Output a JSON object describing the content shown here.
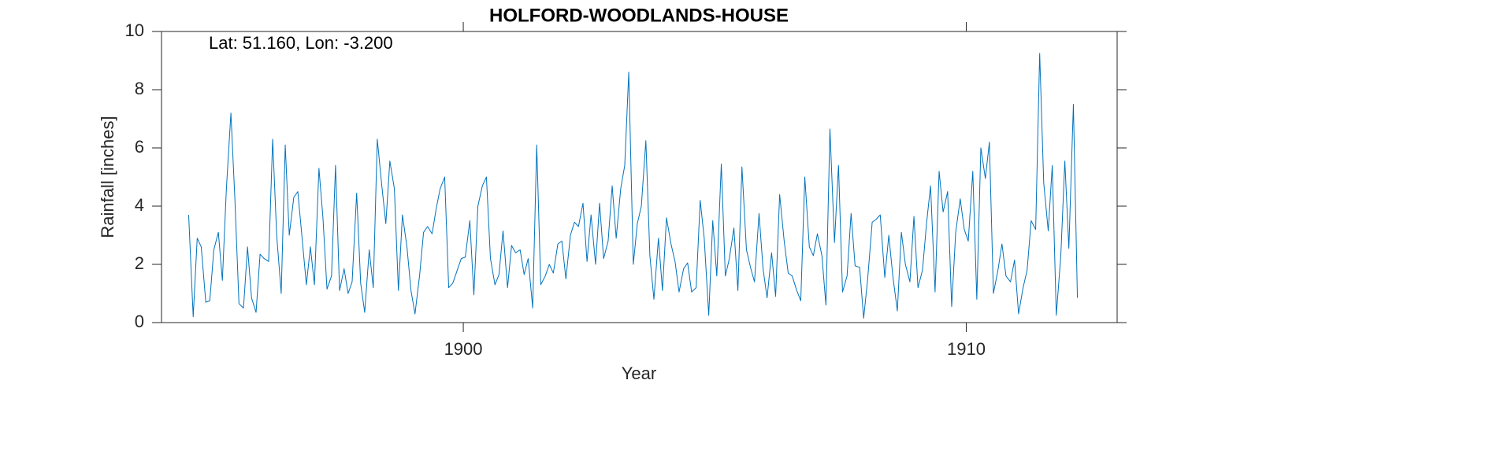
{
  "chart_data": {
    "type": "line",
    "title": "HOLFORD-WOODLANDS-HOUSE",
    "annotation": "Lat: 51.160, Lon: -3.200",
    "xlabel": "Year",
    "ylabel": "Rainfall [inches]",
    "color": "#0072BD",
    "xlim": [
      1894,
      1913
    ],
    "ylim": [
      0,
      10
    ],
    "xticks": [
      1900,
      1910
    ],
    "yticks": [
      0,
      2,
      4,
      6,
      8,
      10
    ],
    "x": [
      1894.54,
      1894.63,
      1894.71,
      1894.79,
      1894.88,
      1894.96,
      1895.04,
      1895.13,
      1895.21,
      1895.29,
      1895.38,
      1895.46,
      1895.54,
      1895.63,
      1895.71,
      1895.79,
      1895.88,
      1895.96,
      1896.04,
      1896.13,
      1896.21,
      1896.29,
      1896.38,
      1896.46,
      1896.54,
      1896.63,
      1896.71,
      1896.79,
      1896.88,
      1896.96,
      1897.04,
      1897.13,
      1897.21,
      1897.29,
      1897.38,
      1897.46,
      1897.54,
      1897.63,
      1897.71,
      1897.79,
      1897.88,
      1897.96,
      1898.04,
      1898.13,
      1898.21,
      1898.29,
      1898.38,
      1898.46,
      1898.54,
      1898.63,
      1898.71,
      1898.79,
      1898.88,
      1898.96,
      1899.04,
      1899.13,
      1899.21,
      1899.29,
      1899.38,
      1899.46,
      1899.54,
      1899.63,
      1899.71,
      1899.79,
      1899.88,
      1899.96,
      1900.04,
      1900.13,
      1900.21,
      1900.29,
      1900.38,
      1900.46,
      1900.54,
      1900.63,
      1900.71,
      1900.79,
      1900.88,
      1900.96,
      1901.04,
      1901.13,
      1901.21,
      1901.29,
      1901.38,
      1901.46,
      1901.54,
      1901.63,
      1901.71,
      1901.79,
      1901.88,
      1901.96,
      1902.04,
      1902.13,
      1902.21,
      1902.29,
      1902.38,
      1902.46,
      1902.54,
      1902.63,
      1902.71,
      1902.79,
      1902.88,
      1902.96,
      1903.04,
      1903.13,
      1903.21,
      1903.29,
      1903.38,
      1903.46,
      1903.54,
      1903.63,
      1903.71,
      1903.79,
      1903.88,
      1903.96,
      1904.04,
      1904.13,
      1904.21,
      1904.29,
      1904.38,
      1904.46,
      1904.54,
      1904.63,
      1904.71,
      1904.79,
      1904.88,
      1904.96,
      1905.04,
      1905.13,
      1905.21,
      1905.29,
      1905.38,
      1905.46,
      1905.54,
      1905.63,
      1905.71,
      1905.79,
      1905.88,
      1905.96,
      1906.04,
      1906.13,
      1906.21,
      1906.29,
      1906.38,
      1906.46,
      1906.54,
      1906.63,
      1906.71,
      1906.79,
      1906.88,
      1906.96,
      1907.04,
      1907.13,
      1907.21,
      1907.29,
      1907.38,
      1907.46,
      1907.54,
      1907.63,
      1907.71,
      1907.79,
      1907.88,
      1907.96,
      1908.04,
      1908.13,
      1908.21,
      1908.29,
      1908.38,
      1908.46,
      1908.54,
      1908.63,
      1908.71,
      1908.79,
      1908.88,
      1908.96,
      1909.04,
      1909.13,
      1909.21,
      1909.29,
      1909.38,
      1909.46,
      1909.54,
      1909.63,
      1909.71,
      1909.79,
      1909.88,
      1909.96,
      1910.04,
      1910.13,
      1910.21,
      1910.29,
      1910.38,
      1910.46,
      1910.54,
      1910.63,
      1910.71,
      1910.79,
      1910.88,
      1910.96,
      1911.04,
      1911.13,
      1911.21,
      1911.29,
      1911.38,
      1911.46,
      1911.54,
      1911.63,
      1911.71,
      1911.79,
      1911.88,
      1911.96,
      1912.04,
      1912.13,
      1912.21
    ],
    "values": [
      3.7,
      0.2,
      2.9,
      2.6,
      0.7,
      0.75,
      2.5,
      3.1,
      1.45,
      4.6,
      7.2,
      4.2,
      0.65,
      0.5,
      2.6,
      0.85,
      0.35,
      2.35,
      2.2,
      2.1,
      6.3,
      3.0,
      1.0,
      6.1,
      3.0,
      4.3,
      4.5,
      3.0,
      1.3,
      2.6,
      1.3,
      5.3,
      3.6,
      1.15,
      1.6,
      5.4,
      1.1,
      1.85,
      1.0,
      1.4,
      4.45,
      1.35,
      0.35,
      2.5,
      1.2,
      6.3,
      4.7,
      3.4,
      5.55,
      4.6,
      1.1,
      3.7,
      2.6,
      1.1,
      0.3,
      1.6,
      3.1,
      3.3,
      3.05,
      3.9,
      4.6,
      5.0,
      1.2,
      1.35,
      1.8,
      2.2,
      2.25,
      3.5,
      0.95,
      4.0,
      4.7,
      5.0,
      2.2,
      1.3,
      1.65,
      3.15,
      1.2,
      2.65,
      2.4,
      2.5,
      1.65,
      2.2,
      0.5,
      6.1,
      1.3,
      1.6,
      2.0,
      1.7,
      2.7,
      2.8,
      1.5,
      3.0,
      3.45,
      3.3,
      4.1,
      2.1,
      3.7,
      2.0,
      4.1,
      2.2,
      2.8,
      4.7,
      2.9,
      4.6,
      5.4,
      8.6,
      2.0,
      3.4,
      4.0,
      6.25,
      2.3,
      0.8,
      2.9,
      1.1,
      3.6,
      2.7,
      2.1,
      1.05,
      1.85,
      2.05,
      1.05,
      1.2,
      4.2,
      2.9,
      0.25,
      3.5,
      1.6,
      5.45,
      1.6,
      2.2,
      3.25,
      1.1,
      5.35,
      2.5,
      1.9,
      1.4,
      3.75,
      1.85,
      0.85,
      2.4,
      0.9,
      4.4,
      2.8,
      1.7,
      1.6,
      1.1,
      0.75,
      5.0,
      2.6,
      2.3,
      3.05,
      2.3,
      0.6,
      6.65,
      2.75,
      5.4,
      1.05,
      1.6,
      3.75,
      1.95,
      1.9,
      0.15,
      1.5,
      3.45,
      3.55,
      3.7,
      1.55,
      3.0,
      1.6,
      0.4,
      3.1,
      2.0,
      1.4,
      3.65,
      1.2,
      1.8,
      3.4,
      4.7,
      1.05,
      5.2,
      3.8,
      4.5,
      0.55,
      3.1,
      4.25,
      3.2,
      2.8,
      5.2,
      0.8,
      6.0,
      4.95,
      6.2,
      1.0,
      1.8,
      2.7,
      1.6,
      1.4,
      2.15,
      0.3,
      1.2,
      1.8,
      3.5,
      3.2,
      9.25,
      4.8,
      3.15,
      5.4,
      0.25,
      2.3,
      5.55,
      2.55,
      7.5,
      0.85
    ]
  }
}
